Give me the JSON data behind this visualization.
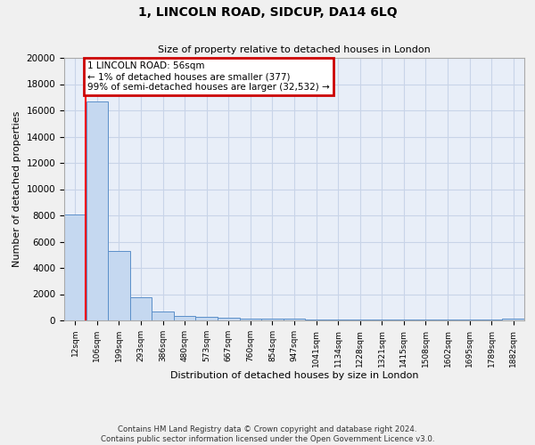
{
  "title_line1": "1, LINCOLN ROAD, SIDCUP, DA14 6LQ",
  "title_line2": "Size of property relative to detached houses in London",
  "xlabel": "Distribution of detached houses by size in London",
  "ylabel": "Number of detached properties",
  "categories": [
    "12sqm",
    "106sqm",
    "199sqm",
    "293sqm",
    "386sqm",
    "480sqm",
    "573sqm",
    "667sqm",
    "760sqm",
    "854sqm",
    "947sqm",
    "1041sqm",
    "1134sqm",
    "1228sqm",
    "1321sqm",
    "1415sqm",
    "1508sqm",
    "1602sqm",
    "1695sqm",
    "1789sqm",
    "1882sqm"
  ],
  "values": [
    8100,
    16700,
    5300,
    1750,
    700,
    350,
    280,
    200,
    160,
    130,
    110,
    90,
    75,
    65,
    60,
    55,
    50,
    45,
    40,
    35,
    130
  ],
  "bar_color": "#c5d8f0",
  "bar_edge_color": "#5b8fc9",
  "grid_color": "#c8d4e8",
  "background_color": "#e8eef8",
  "red_line_x": 0.47,
  "annotation_text_line1": "1 LINCOLN ROAD: 56sqm",
  "annotation_text_line2": "← 1% of detached houses are smaller (377)",
  "annotation_text_line3": "99% of semi-detached houses are larger (32,532) →",
  "annotation_box_color": "#ffffff",
  "annotation_edge_color": "#cc0000",
  "ylim": [
    0,
    20000
  ],
  "yticks": [
    0,
    2000,
    4000,
    6000,
    8000,
    10000,
    12000,
    14000,
    16000,
    18000,
    20000
  ],
  "footer_line1": "Contains HM Land Registry data © Crown copyright and database right 2024.",
  "footer_line2": "Contains public sector information licensed under the Open Government Licence v3.0."
}
